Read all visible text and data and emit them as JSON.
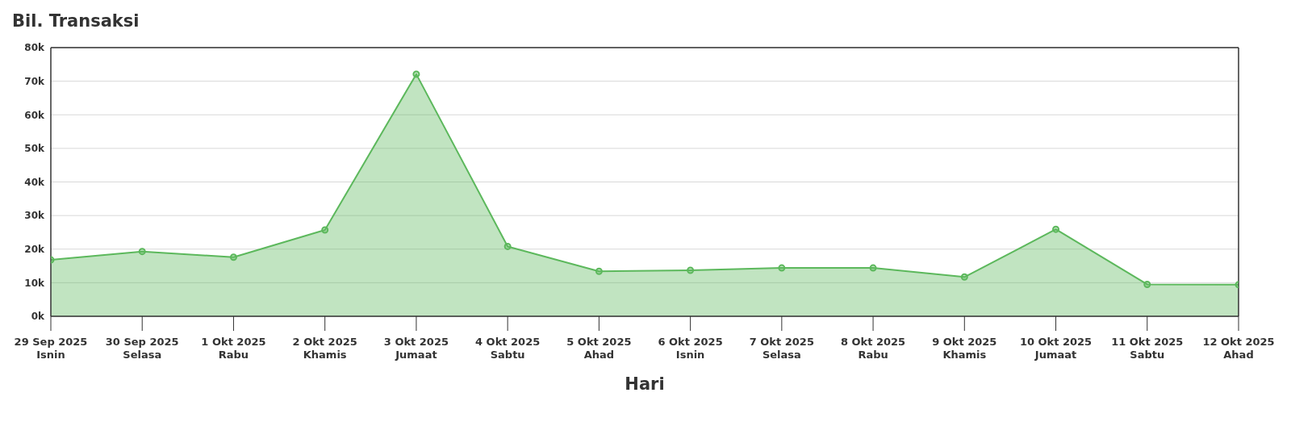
{
  "chart_data": {
    "type": "area",
    "title": "Bil. Transaksi",
    "xlabel": "Hari",
    "categories": [
      "29 Sep 2025\nIsnin",
      "30 Sep 2025\nSelasa",
      "1 Okt 2025\nRabu",
      "2 Okt 2025\nKhamis",
      "3 Okt 2025\nJumaat",
      "4 Okt 2025\nSabtu",
      "5 Okt 2025\nAhad",
      "6 Okt 2025\nIsnin",
      "7 Okt 2025\nSelasa",
      "8 Okt 2025\nRabu",
      "9 Okt 2025\nKhamis",
      "10 Okt 2025\nJumaat",
      "11 Okt 2025\nSabtu",
      "12 Okt 2025\nAhad"
    ],
    "series": [
      {
        "color": "#5cb85c",
        "values": [
          16800,
          19300,
          17600,
          25700,
          72100,
          20800,
          13400,
          13700,
          14400,
          14400,
          11700,
          25900,
          9500,
          9400
        ]
      }
    ],
    "ylim": [
      0,
      80000
    ],
    "yticks": [
      {
        "value": 0,
        "label": "0k"
      },
      {
        "value": 10000,
        "label": "10k"
      },
      {
        "value": 20000,
        "label": "20k"
      },
      {
        "value": 30000,
        "label": "30k"
      },
      {
        "value": 40000,
        "label": "40k"
      },
      {
        "value": 50000,
        "label": "50k"
      },
      {
        "value": 60000,
        "label": "60k"
      },
      {
        "value": 70000,
        "label": "70k"
      },
      {
        "value": 80000,
        "label": "80k"
      }
    ],
    "grid": "y",
    "marker": "circle"
  }
}
